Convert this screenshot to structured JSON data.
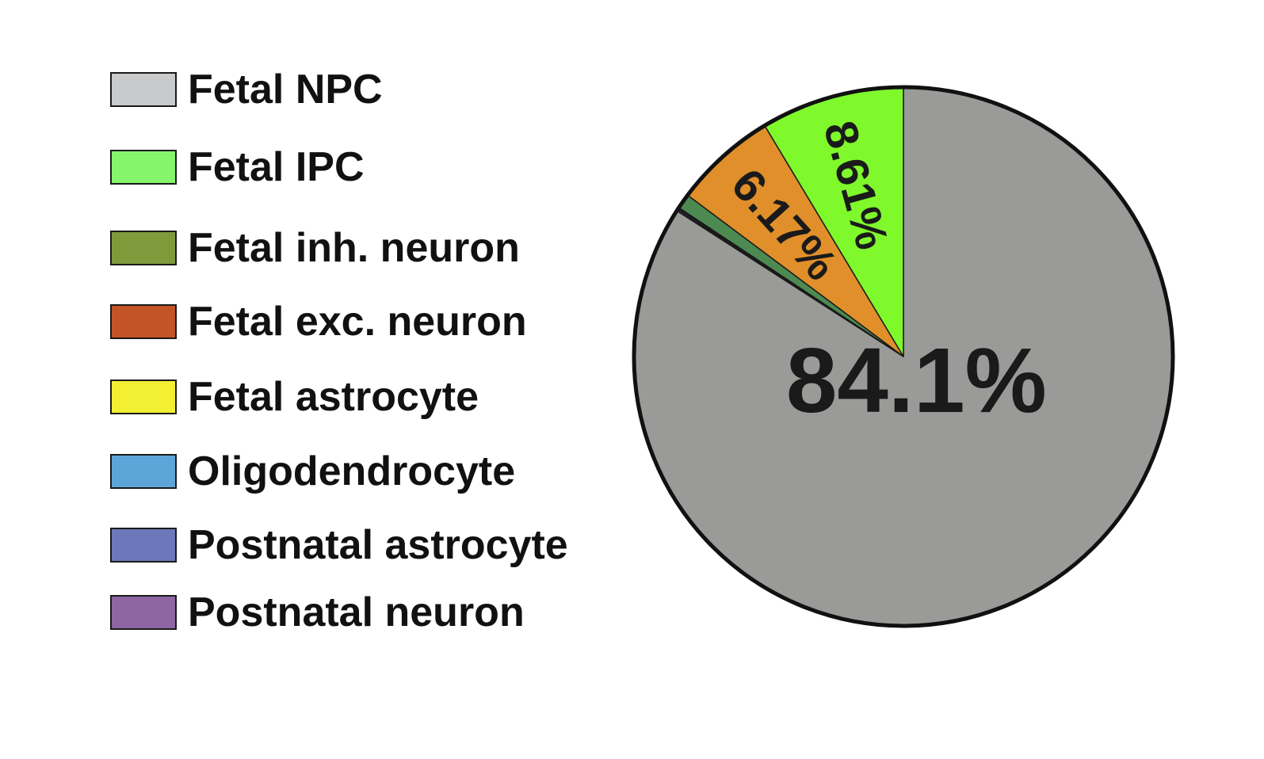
{
  "chart_data": {
    "type": "pie",
    "slices": [
      {
        "name": "Fetal NPC",
        "value": 84.1,
        "color": "#9a9a98",
        "label": "84.1%"
      },
      {
        "name": "Postnatal neuron",
        "value": 0.08,
        "color": "#8e66a1",
        "label": ""
      },
      {
        "name": "Postnatal astrocyte",
        "value": 0.08,
        "color": "#6b78b8",
        "label": ""
      },
      {
        "name": "Oligodendrocyte",
        "value": 0.04,
        "color": "#5aa6d6",
        "label": ""
      },
      {
        "name": "Fetal astrocyte",
        "value": 0.02,
        "color": "#f3ef33",
        "label": ""
      },
      {
        "name": "Fetal inh. neuron",
        "value": 0.9,
        "color": "#4d8a52",
        "label": ""
      },
      {
        "name": "Fetal exc. neuron",
        "value": 6.17,
        "color": "#e08f2a",
        "label": "6.17%"
      },
      {
        "name": "Fetal IPC",
        "value": 8.61,
        "color": "#7ff82c",
        "label": "8.61%"
      }
    ],
    "legend": {
      "placement": "left",
      "entries": [
        {
          "name": "Fetal NPC",
          "color": "#c9cacb"
        },
        {
          "name": "Fetal IPC",
          "color": "#85f56b"
        },
        {
          "name": "Fetal inh. neuron",
          "color": "#7f9a3b"
        },
        {
          "name": "Fetal exc. neuron",
          "color": "#c35427"
        },
        {
          "name": "Fetal astrocyte",
          "color": "#f3ef33"
        },
        {
          "name": "Oligodendrocyte",
          "color": "#5da5d8"
        },
        {
          "name": "Postnatal astrocyte",
          "color": "#6c78ba"
        },
        {
          "name": "Postnatal neuron",
          "color": "#8e66a1"
        }
      ]
    }
  }
}
